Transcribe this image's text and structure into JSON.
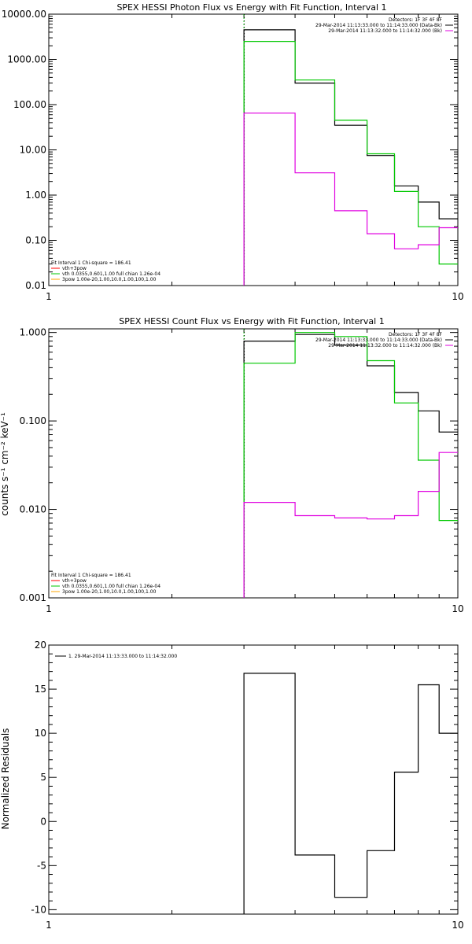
{
  "chart_data": [
    {
      "type": "line",
      "title": "SPEX HESSI Photon Flux vs Energy with Fit Function, Interval 1",
      "xlabel": "",
      "ylabel": "",
      "xscale": "log",
      "yscale": "log",
      "xlim": [
        1,
        10
      ],
      "ylim": [
        0.01,
        10000
      ],
      "x_tick_labels": [
        "1",
        "10"
      ],
      "y_ticks": [
        0.01,
        0.1,
        1,
        10,
        100,
        1000,
        10000
      ],
      "y_tick_labels": [
        "0.01",
        "0.10",
        "1.00",
        "10.00",
        "100.00",
        "1000.00",
        "10000.00"
      ],
      "reference_line_x": 3,
      "legend_top_right": [
        {
          "text": "Detectors: 1F 3F 4F 8F",
          "color": "#000000"
        },
        {
          "text": "29-Mar-2014 11:13:33.000 to 11:14:33.000 (Data-Bk)",
          "color": "#000000"
        },
        {
          "text": "29-Mar-2014 11:13:32.000 to 11:14:32.000 (Bk)",
          "color": "#e000e0"
        }
      ],
      "legend_bottom_left": [
        {
          "text": "Fit Interval 1    Chi-square = 186.41",
          "color": "#000000"
        },
        {
          "text": "vth+3pow",
          "color": "#ff0000"
        },
        {
          "text": "vth 0.0355,0.601,1.00   full chian 1.26e-04",
          "color": "#00c800"
        },
        {
          "text": "3pow 1.00e-20,1.00,10.0,1.00,100,1.00",
          "color": "#ffa500"
        }
      ],
      "edges": [
        3,
        4,
        5,
        6,
        7,
        8,
        9,
        10
      ],
      "series": [
        {
          "color": "#000000",
          "values": [
            4500,
            300,
            35,
            7.5,
            1.6,
            0.7,
            0.3
          ]
        },
        {
          "color": "#00c800",
          "values": [
            2500,
            350,
            45,
            8.2,
            1.2,
            0.2,
            0.03
          ]
        },
        {
          "color": "#e000e0",
          "values": [
            65,
            3.1,
            0.45,
            0.14,
            0.065,
            0.08,
            0.19
          ]
        }
      ]
    },
    {
      "type": "line",
      "title": "SPEX HESSI Count Flux vs Energy with Fit Function, Interval 1",
      "xlabel": "",
      "ylabel": "counts s⁻¹ cm⁻² keV⁻¹",
      "xscale": "log",
      "yscale": "log",
      "xlim": [
        1,
        10
      ],
      "ylim": [
        0.001,
        1.1
      ],
      "x_tick_labels": [
        "1",
        "10"
      ],
      "y_ticks": [
        0.001,
        0.01,
        0.1,
        1
      ],
      "y_tick_labels": [
        "0.001",
        "0.010",
        "0.100",
        "1.000"
      ],
      "reference_line_x": 3,
      "legend_top_right": [
        {
          "text": "Detectors: 1F 3F 4F 8F",
          "color": "#000000"
        },
        {
          "text": "29-Mar-2014 11:13:33.000 to 11:14:33.000 (Data-Bk)",
          "color": "#000000"
        },
        {
          "text": "29-Mar-2014 11:13:32.000 to 11:14:32.000 (Bk)",
          "color": "#e000e0"
        }
      ],
      "legend_bottom_left": [
        {
          "text": "Fit Interval 1    Chi-square = 186.41",
          "color": "#000000"
        },
        {
          "text": "vth+3pow",
          "color": "#ff0000"
        },
        {
          "text": "vth 0.0355,0.601,1.00   full chian 1.26e-04",
          "color": "#00c800"
        },
        {
          "text": "3pow 1.00e-20,1.00,10.0,1.00,100,1.00",
          "color": "#ffa500"
        }
      ],
      "edges": [
        3,
        4,
        5,
        6,
        7,
        8,
        9,
        10
      ],
      "series": [
        {
          "color": "#000000",
          "values": [
            0.8,
            0.95,
            0.72,
            0.42,
            0.21,
            0.13,
            0.075
          ]
        },
        {
          "color": "#00c800",
          "values": [
            0.45,
            1.0,
            0.9,
            0.48,
            0.16,
            0.036,
            0.0075
          ]
        },
        {
          "color": "#e000e0",
          "values": [
            0.012,
            0.0085,
            0.008,
            0.0078,
            0.0085,
            0.016,
            0.044
          ]
        }
      ]
    },
    {
      "type": "line",
      "title": "",
      "xlabel": "",
      "ylabel": "Normalized Residuals",
      "xscale": "log",
      "yscale": "linear",
      "xlim": [
        1,
        10
      ],
      "ylim": [
        -10.5,
        20
      ],
      "x_tick_labels": [
        "1",
        "10"
      ],
      "y_ticks": [
        -10,
        -5,
        0,
        5,
        10,
        15,
        20
      ],
      "y_tick_labels": [
        "-10",
        "-5",
        "0",
        "5",
        "10",
        "15",
        "20"
      ],
      "legend_top_left": [
        {
          "text": "1. 29-Mar-2014 11:13:33.000 to 11:14:32.000",
          "color": "#000000"
        }
      ],
      "edges": [
        3,
        4,
        5,
        6,
        7,
        8,
        9,
        10
      ],
      "series": [
        {
          "color": "#000000",
          "values": [
            16.8,
            -3.8,
            -8.6,
            -3.3,
            5.6,
            15.5,
            10.0
          ]
        }
      ]
    }
  ]
}
